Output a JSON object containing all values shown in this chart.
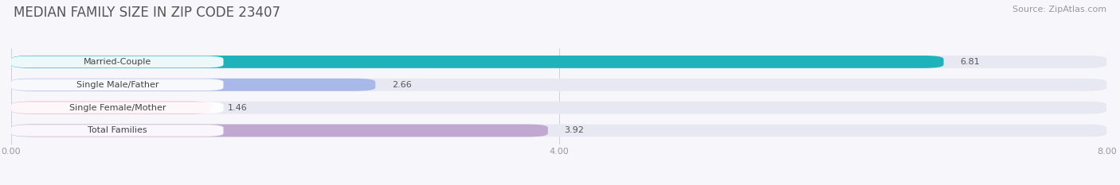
{
  "title": "MEDIAN FAMILY SIZE IN ZIP CODE 23407",
  "source": "Source: ZipAtlas.com",
  "categories": [
    "Married-Couple",
    "Single Male/Father",
    "Single Female/Mother",
    "Total Families"
  ],
  "values": [
    6.81,
    2.66,
    1.46,
    3.92
  ],
  "bar_colors": [
    "#20b2bb",
    "#a8b8e8",
    "#f4a8b8",
    "#c0a8d0"
  ],
  "xlim": [
    0,
    8.0
  ],
  "xticks": [
    0.0,
    4.0,
    8.0
  ],
  "xtick_labels": [
    "0.00",
    "4.00",
    "8.00"
  ],
  "background_color": "#f7f7fb",
  "bar_background_color": "#e8e8f2",
  "title_fontsize": 12,
  "source_fontsize": 8,
  "label_fontsize": 8,
  "value_fontsize": 8,
  "tick_fontsize": 8,
  "bar_height": 0.55
}
